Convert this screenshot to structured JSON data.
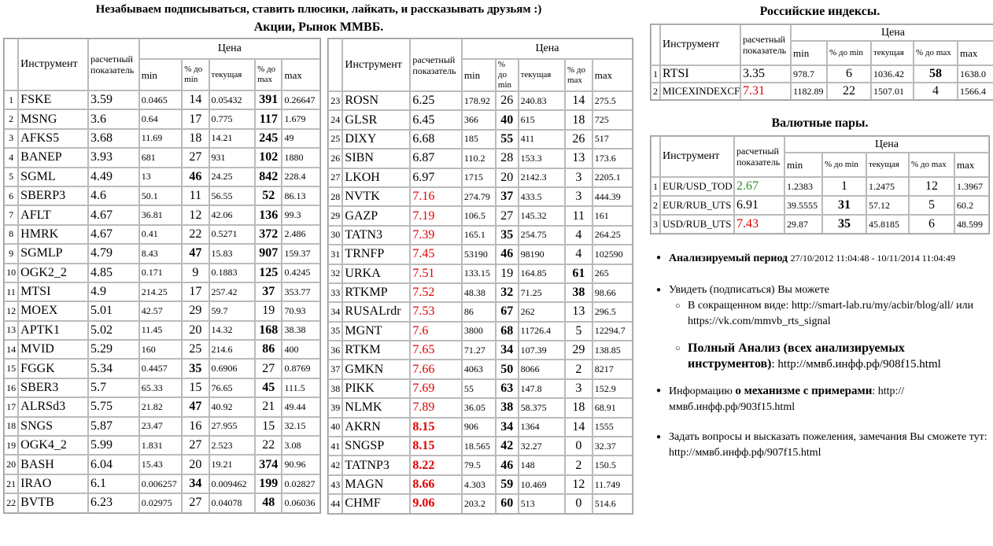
{
  "top_notice": "Незабываем подписываться, ставить плюсики, лайкать, и рассказывать друзьям :)",
  "stocks_title": "Акции, Рынок ММВБ",
  "indices_title": "Российские индексы",
  "fx_title": "Валютные пары",
  "headers": {
    "instrument": "Инструмент",
    "calc": "расчетный показатель",
    "price": "Цена",
    "min": "min",
    "pct_min": "% до min",
    "current": "текущая",
    "pct_max": "% до max",
    "max": "max"
  },
  "stocks_left": [
    {
      "n": "1",
      "name": "FSKE",
      "calc": "3.59",
      "min": "0.0465",
      "pmin": "14",
      "cur": "0.05432",
      "pmax": "391",
      "max": "0.26647",
      "bmin": false,
      "bmax": true,
      "color": ""
    },
    {
      "n": "2",
      "name": "MSNG",
      "calc": "3.6",
      "min": "0.64",
      "pmin": "17",
      "cur": "0.775",
      "pmax": "117",
      "max": "1.679",
      "bmin": false,
      "bmax": true,
      "color": ""
    },
    {
      "n": "3",
      "name": "AFKS5",
      "calc": "3.68",
      "min": "11.69",
      "pmin": "18",
      "cur": "14.21",
      "pmax": "245",
      "max": "49",
      "bmin": false,
      "bmax": true,
      "color": ""
    },
    {
      "n": "4",
      "name": "BANEP",
      "calc": "3.93",
      "min": "681",
      "pmin": "27",
      "cur": "931",
      "pmax": "102",
      "max": "1880",
      "bmin": false,
      "bmax": true,
      "color": ""
    },
    {
      "n": "5",
      "name": "SGML",
      "calc": "4.49",
      "min": "13",
      "pmin": "46",
      "cur": "24.25",
      "pmax": "842",
      "max": "228.4",
      "bmin": true,
      "bmax": true,
      "color": ""
    },
    {
      "n": "6",
      "name": "SBERP3",
      "calc": "4.6",
      "min": "50.1",
      "pmin": "11",
      "cur": "56.55",
      "pmax": "52",
      "max": "86.13",
      "bmin": false,
      "bmax": true,
      "color": ""
    },
    {
      "n": "7",
      "name": "AFLT",
      "calc": "4.67",
      "min": "36.81",
      "pmin": "12",
      "cur": "42.06",
      "pmax": "136",
      "max": "99.3",
      "bmin": false,
      "bmax": true,
      "color": ""
    },
    {
      "n": "8",
      "name": "HMRK",
      "calc": "4.67",
      "min": "0.41",
      "pmin": "22",
      "cur": "0.5271",
      "pmax": "372",
      "max": "2.486",
      "bmin": false,
      "bmax": true,
      "color": ""
    },
    {
      "n": "9",
      "name": "SGMLP",
      "calc": "4.79",
      "min": "8.43",
      "pmin": "47",
      "cur": "15.83",
      "pmax": "907",
      "max": "159.37",
      "bmin": true,
      "bmax": true,
      "color": ""
    },
    {
      "n": "10",
      "name": "OGK2_2",
      "calc": "4.85",
      "min": "0.171",
      "pmin": "9",
      "cur": "0.1883",
      "pmax": "125",
      "max": "0.4245",
      "bmin": false,
      "bmax": true,
      "color": ""
    },
    {
      "n": "11",
      "name": "MTSI",
      "calc": "4.9",
      "min": "214.25",
      "pmin": "17",
      "cur": "257.42",
      "pmax": "37",
      "max": "353.77",
      "bmin": false,
      "bmax": true,
      "color": ""
    },
    {
      "n": "12",
      "name": "MOEX",
      "calc": "5.01",
      "min": "42.57",
      "pmin": "29",
      "cur": "59.7",
      "pmax": "19",
      "max": "70.93",
      "bmin": false,
      "bmax": false,
      "color": ""
    },
    {
      "n": "13",
      "name": "APTK1",
      "calc": "5.02",
      "min": "11.45",
      "pmin": "20",
      "cur": "14.32",
      "pmax": "168",
      "max": "38.38",
      "bmin": false,
      "bmax": true,
      "color": ""
    },
    {
      "n": "14",
      "name": "MVID",
      "calc": "5.29",
      "min": "160",
      "pmin": "25",
      "cur": "214.6",
      "pmax": "86",
      "max": "400",
      "bmin": false,
      "bmax": true,
      "color": ""
    },
    {
      "n": "15",
      "name": "FGGK",
      "calc": "5.34",
      "min": "0.4457",
      "pmin": "35",
      "cur": "0.6906",
      "pmax": "27",
      "max": "0.8769",
      "bmin": true,
      "bmax": false,
      "color": ""
    },
    {
      "n": "16",
      "name": "SBER3",
      "calc": "5.7",
      "min": "65.33",
      "pmin": "15",
      "cur": "76.65",
      "pmax": "45",
      "max": "111.5",
      "bmin": false,
      "bmax": true,
      "color": ""
    },
    {
      "n": "17",
      "name": "ALRSd3",
      "calc": "5.75",
      "min": "21.82",
      "pmin": "47",
      "cur": "40.92",
      "pmax": "21",
      "max": "49.44",
      "bmin": true,
      "bmax": false,
      "color": ""
    },
    {
      "n": "18",
      "name": "SNGS",
      "calc": "5.87",
      "min": "23.47",
      "pmin": "16",
      "cur": "27.955",
      "pmax": "15",
      "max": "32.15",
      "bmin": false,
      "bmax": false,
      "color": ""
    },
    {
      "n": "19",
      "name": "OGK4_2",
      "calc": "5.99",
      "min": "1.831",
      "pmin": "27",
      "cur": "2.523",
      "pmax": "22",
      "max": "3.08",
      "bmin": false,
      "bmax": false,
      "color": ""
    },
    {
      "n": "20",
      "name": "BASH",
      "calc": "6.04",
      "min": "15.43",
      "pmin": "20",
      "cur": "19.21",
      "pmax": "374",
      "max": "90.96",
      "bmin": false,
      "bmax": true,
      "color": ""
    },
    {
      "n": "21",
      "name": "IRAO",
      "calc": "6.1",
      "min": "0.006257",
      "pmin": "34",
      "cur": "0.009462",
      "pmax": "199",
      "max": "0.02827",
      "bmin": true,
      "bmax": true,
      "color": ""
    },
    {
      "n": "22",
      "name": "BVTB",
      "calc": "6.23",
      "min": "0.02975",
      "pmin": "27",
      "cur": "0.04078",
      "pmax": "48",
      "max": "0.06036",
      "bmin": false,
      "bmax": true,
      "color": ""
    }
  ],
  "stocks_right": [
    {
      "n": "23",
      "name": "ROSN",
      "calc": "6.25",
      "min": "178.92",
      "pmin": "26",
      "cur": "240.83",
      "pmax": "14",
      "max": "275.5",
      "bmin": false,
      "bmax": false,
      "color": ""
    },
    {
      "n": "24",
      "name": "GLSR",
      "calc": "6.45",
      "min": "366",
      "pmin": "40",
      "cur": "615",
      "pmax": "18",
      "max": "725",
      "bmin": true,
      "bmax": false,
      "color": ""
    },
    {
      "n": "25",
      "name": "DIXY",
      "calc": "6.68",
      "min": "185",
      "pmin": "55",
      "cur": "411",
      "pmax": "26",
      "max": "517",
      "bmin": true,
      "bmax": false,
      "color": ""
    },
    {
      "n": "26",
      "name": "SIBN",
      "calc": "6.87",
      "min": "110.2",
      "pmin": "28",
      "cur": "153.3",
      "pmax": "13",
      "max": "173.6",
      "bmin": false,
      "bmax": false,
      "color": ""
    },
    {
      "n": "27",
      "name": "LKOH",
      "calc": "6.97",
      "min": "1715",
      "pmin": "20",
      "cur": "2142.3",
      "pmax": "3",
      "max": "2205.1",
      "bmin": false,
      "bmax": false,
      "color": ""
    },
    {
      "n": "28",
      "name": "NVTK",
      "calc": "7.16",
      "min": "274.79",
      "pmin": "37",
      "cur": "433.5",
      "pmax": "3",
      "max": "444.39",
      "bmin": true,
      "bmax": false,
      "color": "red"
    },
    {
      "n": "29",
      "name": "GAZP",
      "calc": "7.19",
      "min": "106.5",
      "pmin": "27",
      "cur": "145.32",
      "pmax": "11",
      "max": "161",
      "bmin": false,
      "bmax": false,
      "color": "red"
    },
    {
      "n": "30",
      "name": "TATN3",
      "calc": "7.39",
      "min": "165.1",
      "pmin": "35",
      "cur": "254.75",
      "pmax": "4",
      "max": "264.25",
      "bmin": true,
      "bmax": false,
      "color": "red"
    },
    {
      "n": "31",
      "name": "TRNFP",
      "calc": "7.45",
      "min": "53190",
      "pmin": "46",
      "cur": "98190",
      "pmax": "4",
      "max": "102590",
      "bmin": true,
      "bmax": false,
      "color": "red"
    },
    {
      "n": "32",
      "name": "URKA",
      "calc": "7.51",
      "min": "133.15",
      "pmin": "19",
      "cur": "164.85",
      "pmax": "61",
      "max": "265",
      "bmin": false,
      "bmax": true,
      "color": "red"
    },
    {
      "n": "33",
      "name": "RTKMP",
      "calc": "7.52",
      "min": "48.38",
      "pmin": "32",
      "cur": "71.25",
      "pmax": "38",
      "max": "98.66",
      "bmin": true,
      "bmax": true,
      "color": "red"
    },
    {
      "n": "34",
      "name": "RUSALrdr",
      "calc": "7.53",
      "min": "86",
      "pmin": "67",
      "cur": "262",
      "pmax": "13",
      "max": "296.5",
      "bmin": true,
      "bmax": false,
      "color": "red"
    },
    {
      "n": "35",
      "name": "MGNT",
      "calc": "7.6",
      "min": "3800",
      "pmin": "68",
      "cur": "11726.4",
      "pmax": "5",
      "max": "12294.7",
      "bmin": true,
      "bmax": false,
      "color": "red"
    },
    {
      "n": "36",
      "name": "RTKM",
      "calc": "7.65",
      "min": "71.27",
      "pmin": "34",
      "cur": "107.39",
      "pmax": "29",
      "max": "138.85",
      "bmin": true,
      "bmax": false,
      "color": "red"
    },
    {
      "n": "37",
      "name": "GMKN",
      "calc": "7.66",
      "min": "4063",
      "pmin": "50",
      "cur": "8066",
      "pmax": "2",
      "max": "8217",
      "bmin": true,
      "bmax": false,
      "color": "red"
    },
    {
      "n": "38",
      "name": "PIKK",
      "calc": "7.69",
      "min": "55",
      "pmin": "63",
      "cur": "147.8",
      "pmax": "3",
      "max": "152.9",
      "bmin": true,
      "bmax": false,
      "color": "red"
    },
    {
      "n": "39",
      "name": "NLMK",
      "calc": "7.89",
      "min": "36.05",
      "pmin": "38",
      "cur": "58.375",
      "pmax": "18",
      "max": "68.91",
      "bmin": true,
      "bmax": false,
      "color": "red"
    },
    {
      "n": "40",
      "name": "AKRN",
      "calc": "8.15",
      "min": "906",
      "pmin": "34",
      "cur": "1364",
      "pmax": "14",
      "max": "1555",
      "bmin": true,
      "bmax": false,
      "color": "redb"
    },
    {
      "n": "41",
      "name": "SNGSP",
      "calc": "8.15",
      "min": "18.565",
      "pmin": "42",
      "cur": "32.27",
      "pmax": "0",
      "max": "32.37",
      "bmin": true,
      "bmax": false,
      "color": "redb"
    },
    {
      "n": "42",
      "name": "TATNP3",
      "calc": "8.22",
      "min": "79.5",
      "pmin": "46",
      "cur": "148",
      "pmax": "2",
      "max": "150.5",
      "bmin": true,
      "bmax": false,
      "color": "redb"
    },
    {
      "n": "43",
      "name": "MAGN",
      "calc": "8.66",
      "min": "4.303",
      "pmin": "59",
      "cur": "10.469",
      "pmax": "12",
      "max": "11.749",
      "bmin": true,
      "bmax": false,
      "color": "redb"
    },
    {
      "n": "44",
      "name": "CHMF",
      "calc": "9.06",
      "min": "203.2",
      "pmin": "60",
      "cur": "513",
      "pmax": "0",
      "max": "514.6",
      "bmin": true,
      "bmax": false,
      "color": "redb"
    }
  ],
  "indices": [
    {
      "n": "1",
      "name": "RTSI",
      "calc": "3.35",
      "min": "978.7",
      "pmin": "6",
      "cur": "1036.42",
      "pmax": "58",
      "max": "1638.0",
      "bmin": false,
      "bmax": true,
      "color": ""
    },
    {
      "n": "2",
      "name": "MICEXINDEXCF",
      "calc": "7.31",
      "min": "1182.89",
      "pmin": "22",
      "cur": "1507.01",
      "pmax": "4",
      "max": "1566.4",
      "bmin": false,
      "bmax": false,
      "color": "red"
    }
  ],
  "fx": [
    {
      "n": "1",
      "name": "EUR/USD_TOD",
      "calc": "2.67",
      "min": "1.2383",
      "pmin": "1",
      "cur": "1.2475",
      "pmax": "12",
      "max": "1.3967",
      "bmin": false,
      "bmax": false,
      "color": "green"
    },
    {
      "n": "2",
      "name": "EUR/RUB_UTS",
      "calc": "6.91",
      "min": "39.5555",
      "pmin": "31",
      "cur": "57.12",
      "pmax": "5",
      "max": "60.2",
      "bmin": true,
      "bmax": false,
      "color": ""
    },
    {
      "n": "3",
      "name": "USD/RUB_UTS",
      "calc": "7.43",
      "min": "29.87",
      "pmin": "35",
      "cur": "45.8185",
      "pmax": "6",
      "max": "48.599",
      "bmin": true,
      "bmax": false,
      "color": "red"
    }
  ],
  "info": {
    "period_label": "Анализируемый период",
    "period_value": "27/10/2012 11:04:48 - 10/11/2014 11:04:49",
    "see_text": "Увидеть (подписаться) Вы можете",
    "short_text": "В сокращенном виде: http://smart-lab.ru/my/acbir/blog/all/ или https://vk.com/mmvb_rts_signal",
    "full_bold": "Полный Анализ (всех анализируемых инструментов)",
    "full_link": ": http://ммвб.инфф.рф/908f15.html",
    "mech_pre": "Информацию ",
    "mech_bold": "о механизме с примерами",
    "mech_post": ": http://ммвб.инфф.рф/903f15.html",
    "ask_text": "Задать вопросы и высказать пожеления, замечания Вы сможете тут: http://ммвб.инфф.рф/907f15.html"
  }
}
